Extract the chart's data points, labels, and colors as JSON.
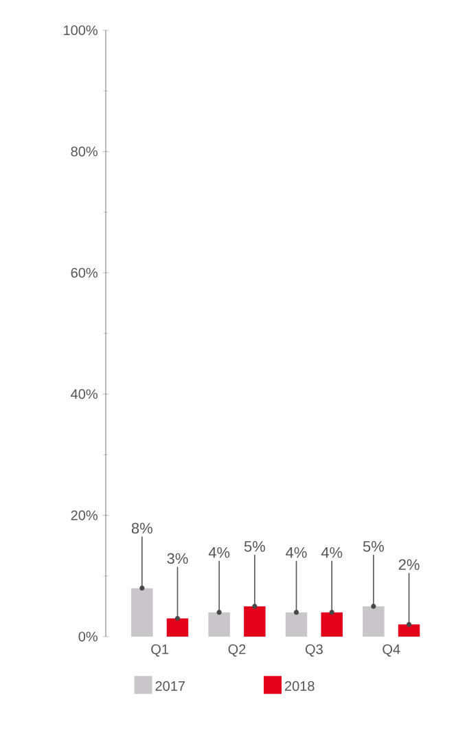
{
  "chart_data": {
    "type": "bar",
    "categories": [
      "Q1",
      "Q2",
      "Q3",
      "Q4"
    ],
    "series": [
      {
        "name": "2017",
        "color": "#c8c6c8",
        "values": [
          8,
          4,
          4,
          5
        ],
        "value_labels": [
          "8%",
          "4%",
          "4%",
          "5%"
        ]
      },
      {
        "name": "2018",
        "color": "#e2001a",
        "values": [
          3,
          5,
          4,
          2
        ],
        "value_labels": [
          "3%",
          "5%",
          "4%",
          "2%"
        ]
      }
    ],
    "ylim": [
      0,
      100
    ],
    "yticks": [
      {
        "value": 0,
        "label": "0%"
      },
      {
        "value": 20,
        "label": "20%"
      },
      {
        "value": 40,
        "label": "40%"
      },
      {
        "value": 60,
        "label": "60%"
      },
      {
        "value": 80,
        "label": "80%"
      },
      {
        "value": 100,
        "label": "100%"
      }
    ],
    "grid": false,
    "legend": "bottom"
  }
}
